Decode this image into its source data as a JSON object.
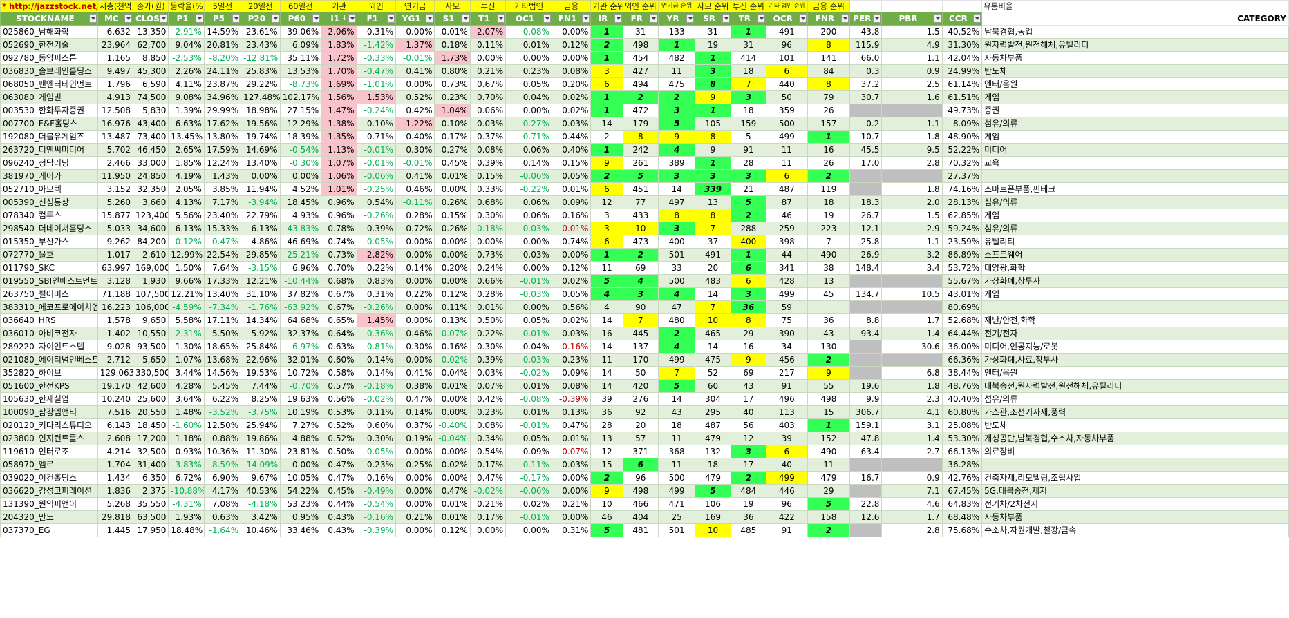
{
  "top_labels": [
    "* http://jazzstock.net/ 활용",
    "시총(천억)",
    "종가(원)",
    "등락율(%)",
    "5일전",
    "20일전",
    "60일전",
    "기관",
    "외인",
    "연기금",
    "사모",
    "투신",
    "기타법인",
    "금융",
    "기관 순위",
    "외인 순위",
    "연기금 순위",
    "사모 순위",
    "투신 순위",
    "기타 법인 순위",
    "금융 순위",
    "",
    "",
    "",
    "유통비율"
  ],
  "headers": [
    "STOCKNAME",
    "MC",
    "CLOSE",
    "P1",
    "P5",
    "P20",
    "P60",
    "I1",
    "F1",
    "YG1",
    "S1",
    "T1",
    "OC1",
    "FN1",
    "IR",
    "FR",
    "YR",
    "SR",
    "TR",
    "OCR",
    "FNR",
    "PER",
    "PBR",
    "CCR",
    "CATEGORY"
  ],
  "sort_indicator": "↓",
  "colors": {
    "header_green": "#70ad47",
    "top_yellow": "#ffff00",
    "stripe": "#e2efda",
    "pink": "#f8c3cb",
    "rank_green": "#33ff55",
    "rank_yellow": "#ffff00",
    "gray": "#bfbfbf",
    "negative": "#00b050",
    "url_red": "#c00000"
  },
  "rows": [
    [
      "025860_남해화학",
      "6.632",
      "13,350",
      "-2.91%",
      "14.59%",
      "23.61%",
      "39.06%",
      "2.06%",
      "0.31%",
      "0.00%",
      "0.01%",
      "2.07%",
      "-0.08%",
      "0.00%",
      "1",
      "31",
      "133",
      "31",
      "1",
      "491",
      "200",
      "43.8",
      "1.5",
      "40.52%",
      "남북경협,농업"
    ],
    [
      "052690_한전기술",
      "23.964",
      "62,700",
      "9.04%",
      "20.81%",
      "23.43%",
      "6.09%",
      "1.83%",
      "-1.42%",
      "1.37%",
      "0.18%",
      "0.11%",
      "0.01%",
      "0.12%",
      "2",
      "498",
      "1",
      "19",
      "31",
      "96",
      "8",
      "115.9",
      "4.9",
      "31.30%",
      "원자력발전,원전해체,유틸리티"
    ],
    [
      "092780_동양피스톤",
      "1.165",
      "8,850",
      "-2.53%",
      "-8.20%",
      "-12.81%",
      "35.11%",
      "1.72%",
      "-0.33%",
      "-0.01%",
      "1.73%",
      "0.00%",
      "0.00%",
      "0.00%",
      "1",
      "454",
      "482",
      "1",
      "414",
      "101",
      "141",
      "66.0",
      "1.1",
      "42.04%",
      "자동차부품"
    ],
    [
      "036830_솔브레인홀딩스",
      "9.497",
      "45,300",
      "2.26%",
      "24.11%",
      "25.83%",
      "13.53%",
      "1.70%",
      "-0.47%",
      "0.41%",
      "0.80%",
      "0.21%",
      "0.23%",
      "0.08%",
      "3",
      "427",
      "11",
      "3",
      "18",
      "6",
      "84",
      "0.3",
      "0.9",
      "24.99%",
      "반도체"
    ],
    [
      "068050_팬엔터테인먼트",
      "1.796",
      "6,590",
      "4.11%",
      "23.87%",
      "29.22%",
      "-8.73%",
      "1.69%",
      "-1.01%",
      "0.00%",
      "0.73%",
      "0.67%",
      "0.05%",
      "0.20%",
      "6",
      "494",
      "475",
      "8",
      "7",
      "440",
      "8",
      "37.2",
      "2.5",
      "61.14%",
      "엔터/음원"
    ],
    [
      "063080_게임빌",
      "4.913",
      "74,500",
      "9.08%",
      "34.96%",
      "127.48%",
      "102.17%",
      "1.56%",
      "1.53%",
      "0.52%",
      "0.23%",
      "0.70%",
      "0.04%",
      "0.02%",
      "1",
      "2",
      "2",
      "9",
      "3",
      "50",
      "79",
      "30.7",
      "1.6",
      "61.51%",
      "게임"
    ],
    [
      "003530_한화투자증권",
      "12.508",
      "5,830",
      "1.39%",
      "29.99%",
      "18.98%",
      "27.15%",
      "1.47%",
      "-0.24%",
      "0.42%",
      "1.04%",
      "0.06%",
      "0.00%",
      "0.02%",
      "1",
      "472",
      "3",
      "1",
      "18",
      "359",
      "26",
      "",
      "",
      "49.73%",
      "증권"
    ],
    [
      "007700_F&F홀딩스",
      "16.976",
      "43,400",
      "6.63%",
      "17.62%",
      "19.56%",
      "12.29%",
      "1.38%",
      "0.10%",
      "1.22%",
      "0.10%",
      "0.03%",
      "-0.27%",
      "0.03%",
      "14",
      "179",
      "5",
      "105",
      "159",
      "500",
      "157",
      "0.2",
      "1.1",
      "8.09%",
      "섬유/의류"
    ],
    [
      "192080_더블유게임즈",
      "13.487",
      "73,400",
      "13.45%",
      "13.80%",
      "19.74%",
      "18.39%",
      "1.35%",
      "0.71%",
      "0.40%",
      "0.17%",
      "0.37%",
      "-0.71%",
      "0.44%",
      "2",
      "8",
      "9",
      "8",
      "5",
      "499",
      "1",
      "10.7",
      "1.8",
      "48.90%",
      "게임"
    ],
    [
      "263720_디앤씨미디어",
      "5.702",
      "46,450",
      "2.65%",
      "17.59%",
      "14.69%",
      "-0.54%",
      "1.13%",
      "-0.01%",
      "0.30%",
      "0.27%",
      "0.08%",
      "0.06%",
      "0.40%",
      "1",
      "242",
      "4",
      "9",
      "91",
      "11",
      "16",
      "45.5",
      "9.5",
      "52.22%",
      "미디어"
    ],
    [
      "096240_청담러닝",
      "2.466",
      "33,000",
      "1.85%",
      "12.24%",
      "13.40%",
      "-0.30%",
      "1.07%",
      "-0.01%",
      "-0.01%",
      "0.45%",
      "0.39%",
      "0.14%",
      "0.15%",
      "9",
      "261",
      "389",
      "1",
      "28",
      "11",
      "26",
      "17.0",
      "2.8",
      "70.32%",
      "교육"
    ],
    [
      "381970_케이카",
      "11.950",
      "24,850",
      "4.19%",
      "1.43%",
      "0.00%",
      "0.00%",
      "1.06%",
      "-0.06%",
      "0.41%",
      "0.01%",
      "0.15%",
      "-0.06%",
      "0.05%",
      "2",
      "5",
      "3",
      "3",
      "3",
      "6",
      "2",
      "",
      "",
      "27.37%",
      ""
    ],
    [
      "052710_아모텍",
      "3.152",
      "32,350",
      "2.05%",
      "3.85%",
      "11.94%",
      "4.52%",
      "1.01%",
      "-0.25%",
      "0.46%",
      "0.00%",
      "0.33%",
      "-0.22%",
      "0.01%",
      "6",
      "451",
      "14",
      "339",
      "21",
      "487",
      "119",
      "",
      "1.8",
      "74.16%",
      "스마트폰부품,핀테크"
    ],
    [
      "005390_신성통상",
      "5.260",
      "3,660",
      "4.13%",
      "7.17%",
      "-3.94%",
      "18.45%",
      "0.96%",
      "0.54%",
      "-0.11%",
      "0.26%",
      "0.68%",
      "0.06%",
      "0.09%",
      "12",
      "77",
      "497",
      "13",
      "5",
      "87",
      "18",
      "18.3",
      "2.0",
      "28.13%",
      "섬유/의류"
    ],
    [
      "078340_컴투스",
      "15.877",
      "123,400",
      "5.56%",
      "23.40%",
      "22.79%",
      "4.93%",
      "0.96%",
      "-0.26%",
      "0.28%",
      "0.15%",
      "0.30%",
      "0.06%",
      "0.16%",
      "3",
      "433",
      "8",
      "8",
      "2",
      "46",
      "19",
      "26.7",
      "1.5",
      "62.85%",
      "게임"
    ],
    [
      "298540_더네이쳐홀딩스",
      "5.033",
      "34,600",
      "6.13%",
      "15.33%",
      "6.13%",
      "-43.83%",
      "0.78%",
      "0.39%",
      "0.72%",
      "0.26%",
      "-0.18%",
      "-0.03%",
      "-0.01%",
      "3",
      "10",
      "3",
      "7",
      "288",
      "259",
      "223",
      "12.1",
      "2.9",
      "59.24%",
      "섬유/의류"
    ],
    [
      "015350_부산가스",
      "9.262",
      "84,200",
      "-0.12%",
      "-0.47%",
      "4.86%",
      "46.69%",
      "0.74%",
      "-0.05%",
      "0.00%",
      "0.00%",
      "0.00%",
      "0.00%",
      "0.74%",
      "6",
      "473",
      "400",
      "37",
      "400",
      "398",
      "7",
      "25.8",
      "1.1",
      "23.59%",
      "유틸리티"
    ],
    [
      "072770_율호",
      "1.017",
      "2,610",
      "12.99%",
      "22.54%",
      "29.85%",
      "-25.21%",
      "0.73%",
      "2.82%",
      "0.00%",
      "0.00%",
      "0.73%",
      "0.03%",
      "0.00%",
      "1",
      "2",
      "501",
      "491",
      "1",
      "44",
      "490",
      "26.9",
      "3.2",
      "86.89%",
      "소프트웨어"
    ],
    [
      "011790_SKC",
      "63.997",
      "169,000",
      "1.50%",
      "7.64%",
      "-3.15%",
      "6.96%",
      "0.70%",
      "0.22%",
      "0.14%",
      "0.20%",
      "0.24%",
      "0.00%",
      "0.12%",
      "11",
      "69",
      "33",
      "20",
      "6",
      "341",
      "38",
      "148.4",
      "3.4",
      "53.72%",
      "태양광,화학"
    ],
    [
      "019550_SBI인베스트먼트",
      "3.128",
      "1,930",
      "9.66%",
      "17.33%",
      "12.21%",
      "-10.44%",
      "0.68%",
      "0.83%",
      "0.00%",
      "0.00%",
      "0.66%",
      "-0.01%",
      "0.02%",
      "5",
      "4",
      "500",
      "483",
      "6",
      "428",
      "13",
      "",
      "",
      "55.67%",
      "가상화폐,창투사"
    ],
    [
      "263750_펄어비스",
      "71.188",
      "107,500",
      "12.21%",
      "13.40%",
      "31.10%",
      "37.82%",
      "0.67%",
      "0.31%",
      "0.22%",
      "0.12%",
      "0.28%",
      "-0.03%",
      "0.05%",
      "4",
      "3",
      "4",
      "14",
      "3",
      "499",
      "45",
      "134.7",
      "10.5",
      "43.01%",
      "게임"
    ],
    [
      "383310_에코프로에이치엔",
      "16.223",
      "106,000",
      "-4.59%",
      "-7.34%",
      "-1.76%",
      "-63.92%",
      "0.67%",
      "-0.26%",
      "0.00%",
      "0.11%",
      "0.01%",
      "0.00%",
      "0.56%",
      "4",
      "90",
      "47",
      "7",
      "36",
      "59",
      "",
      "",
      "",
      "80.69%",
      ""
    ],
    [
      "036640_HRS",
      "1.578",
      "9,650",
      "5.58%",
      "17.11%",
      "14.34%",
      "64.68%",
      "0.65%",
      "1.45%",
      "0.00%",
      "0.13%",
      "0.50%",
      "0.05%",
      "0.02%",
      "14",
      "7",
      "480",
      "10",
      "8",
      "75",
      "36",
      "8.8",
      "1.7",
      "52.68%",
      "재난/안전,화학"
    ],
    [
      "036010_아비코전자",
      "1.402",
      "10,550",
      "-2.31%",
      "5.50%",
      "5.92%",
      "32.37%",
      "0.64%",
      "-0.36%",
      "0.46%",
      "-0.07%",
      "0.22%",
      "-0.01%",
      "0.03%",
      "16",
      "445",
      "2",
      "465",
      "29",
      "390",
      "43",
      "93.4",
      "1.4",
      "64.44%",
      "전기/전자"
    ],
    [
      "289220_자이언트스텝",
      "9.028",
      "93,500",
      "1.30%",
      "18.65%",
      "25.84%",
      "-6.97%",
      "0.63%",
      "-0.81%",
      "0.30%",
      "0.16%",
      "0.30%",
      "0.04%",
      "-0.16%",
      "14",
      "137",
      "4",
      "14",
      "16",
      "34",
      "130",
      "",
      "30.6",
      "36.00%",
      "미디어,인공지능/로봇"
    ],
    [
      "021080_에이티넘인베스트",
      "2.712",
      "5,650",
      "1.07%",
      "13.68%",
      "22.96%",
      "32.01%",
      "0.60%",
      "0.14%",
      "0.00%",
      "-0.02%",
      "0.39%",
      "-0.03%",
      "0.23%",
      "11",
      "170",
      "499",
      "475",
      "9",
      "456",
      "2",
      "",
      "",
      "66.36%",
      "가상화폐,사료,창투사"
    ],
    [
      "352820_하이브",
      "129.063",
      "330,500",
      "3.44%",
      "14.56%",
      "19.53%",
      "10.72%",
      "0.58%",
      "0.14%",
      "0.41%",
      "0.04%",
      "0.03%",
      "-0.02%",
      "0.09%",
      "14",
      "50",
      "7",
      "52",
      "69",
      "217",
      "9",
      "",
      "6.8",
      "38.44%",
      "엔터/음원"
    ],
    [
      "051600_한전KPS",
      "19.170",
      "42,600",
      "4.28%",
      "5.45%",
      "7.44%",
      "-0.70%",
      "0.57%",
      "-0.18%",
      "0.38%",
      "0.01%",
      "0.07%",
      "0.01%",
      "0.08%",
      "14",
      "420",
      "5",
      "60",
      "43",
      "91",
      "55",
      "19.6",
      "1.8",
      "48.76%",
      "대북송전,원자력발전,원전해체,유틸리티"
    ],
    [
      "105630_한세실업",
      "10.240",
      "25,600",
      "3.64%",
      "6.22%",
      "8.25%",
      "19.63%",
      "0.56%",
      "-0.02%",
      "0.47%",
      "0.00%",
      "0.42%",
      "-0.08%",
      "-0.39%",
      "39",
      "276",
      "14",
      "304",
      "17",
      "496",
      "498",
      "9.9",
      "2.3",
      "40.40%",
      "섬유/의류"
    ],
    [
      "100090_삼강엠앤티",
      "7.516",
      "20,550",
      "1.48%",
      "-3.52%",
      "-3.75%",
      "10.19%",
      "0.53%",
      "0.11%",
      "0.14%",
      "0.00%",
      "0.23%",
      "0.01%",
      "0.13%",
      "36",
      "92",
      "43",
      "295",
      "40",
      "113",
      "15",
      "306.7",
      "4.1",
      "60.80%",
      "가스관,조선기자재,풍력"
    ],
    [
      "020120_키다리스튜디오",
      "6.143",
      "18,450",
      "-1.60%",
      "12.50%",
      "25.94%",
      "7.27%",
      "0.52%",
      "0.60%",
      "0.37%",
      "-0.40%",
      "0.08%",
      "-0.01%",
      "0.47%",
      "28",
      "20",
      "18",
      "487",
      "56",
      "403",
      "1",
      "159.1",
      "3.1",
      "25.08%",
      "반도체"
    ],
    [
      "023800_인지컨트롤스",
      "2.608",
      "17,200",
      "1.18%",
      "0.88%",
      "19.86%",
      "4.88%",
      "0.52%",
      "0.30%",
      "0.19%",
      "-0.04%",
      "0.34%",
      "0.05%",
      "0.01%",
      "13",
      "57",
      "11",
      "479",
      "12",
      "39",
      "152",
      "47.8",
      "1.4",
      "53.30%",
      "개성공단,남북경협,수소차,자동차부품"
    ],
    [
      "119610_인터로조",
      "4.214",
      "32,500",
      "0.93%",
      "10.36%",
      "11.30%",
      "23.81%",
      "0.50%",
      "-0.05%",
      "0.00%",
      "0.00%",
      "0.54%",
      "0.09%",
      "-0.07%",
      "12",
      "371",
      "368",
      "132",
      "3",
      "6",
      "490",
      "63.4",
      "2.7",
      "66.13%",
      "의료장비"
    ],
    [
      "058970_엠로",
      "1.704",
      "31,400",
      "-3.83%",
      "-8.59%",
      "-14.09%",
      "0.00%",
      "0.47%",
      "0.23%",
      "0.25%",
      "0.02%",
      "0.17%",
      "-0.11%",
      "0.03%",
      "15",
      "6",
      "11",
      "18",
      "17",
      "40",
      "11",
      "",
      "",
      "36.28%",
      ""
    ],
    [
      "039020_이건홀딩스",
      "1.434",
      "6,350",
      "6.72%",
      "6.90%",
      "9.67%",
      "10.05%",
      "0.47%",
      "0.16%",
      "0.00%",
      "0.00%",
      "0.47%",
      "-0.17%",
      "0.00%",
      "2",
      "96",
      "500",
      "479",
      "2",
      "499",
      "479",
      "16.7",
      "0.9",
      "42.76%",
      "건축자재,리모델링,조립사업"
    ],
    [
      "036620_감성코퍼레이션",
      "1.836",
      "2,375",
      "-10.88%",
      "4.17%",
      "40.53%",
      "54.22%",
      "0.45%",
      "-0.49%",
      "0.00%",
      "0.47%",
      "-0.02%",
      "-0.06%",
      "0.00%",
      "9",
      "498",
      "499",
      "5",
      "484",
      "446",
      "29",
      "",
      "7.1",
      "67.45%",
      "5G,대북송전,제지"
    ],
    [
      "131390_원익피앤이",
      "5.268",
      "35,550",
      "-4.31%",
      "7.08%",
      "-4.18%",
      "53.23%",
      "0.44%",
      "-0.54%",
      "0.00%",
      "0.01%",
      "0.21%",
      "0.02%",
      "0.21%",
      "10",
      "466",
      "471",
      "106",
      "19",
      "96",
      "5",
      "22.8",
      "4.6",
      "64.83%",
      "전기차/2차전지"
    ],
    [
      "204320_만도",
      "29.818",
      "63,500",
      "1.93%",
      "0.63%",
      "3.42%",
      "0.95%",
      "0.43%",
      "-0.16%",
      "0.21%",
      "0.01%",
      "0.17%",
      "-0.01%",
      "0.00%",
      "46",
      "404",
      "25",
      "169",
      "36",
      "422",
      "158",
      "12.6",
      "1.7",
      "68.48%",
      "자동차부품"
    ],
    [
      "037370_EG",
      "1.445",
      "17,950",
      "18.48%",
      "-1.64%",
      "10.46%",
      "33.46%",
      "0.43%",
      "-0.39%",
      "0.00%",
      "0.12%",
      "0.00%",
      "0.00%",
      "0.31%",
      "5",
      "481",
      "501",
      "10",
      "485",
      "91",
      "2",
      "",
      "2.8",
      "75.68%",
      "수소차,자원개발,철강/금속"
    ]
  ],
  "pink_cells": [
    [
      0,
      7
    ],
    [
      0,
      11
    ],
    [
      1,
      7
    ],
    [
      1,
      9
    ],
    [
      2,
      7
    ],
    [
      2,
      10
    ],
    [
      3,
      7
    ],
    [
      4,
      7
    ],
    [
      5,
      7
    ],
    [
      5,
      8
    ],
    [
      6,
      7
    ],
    [
      6,
      10
    ],
    [
      7,
      7
    ],
    [
      7,
      9
    ],
    [
      8,
      7
    ],
    [
      9,
      7
    ],
    [
      10,
      7
    ],
    [
      11,
      7
    ],
    [
      12,
      7
    ],
    [
      17,
      8
    ],
    [
      22,
      8
    ]
  ],
  "green_cells": [
    [
      0,
      14
    ],
    [
      0,
      18
    ],
    [
      1,
      14
    ],
    [
      1,
      16
    ],
    [
      2,
      14
    ],
    [
      2,
      17
    ],
    [
      3,
      17
    ],
    [
      4,
      17
    ],
    [
      5,
      14
    ],
    [
      5,
      15
    ],
    [
      5,
      16
    ],
    [
      5,
      18
    ],
    [
      6,
      14
    ],
    [
      6,
      16
    ],
    [
      6,
      17
    ],
    [
      7,
      16
    ],
    [
      8,
      20
    ],
    [
      9,
      14
    ],
    [
      9,
      16
    ],
    [
      10,
      17
    ],
    [
      11,
      14
    ],
    [
      11,
      15
    ],
    [
      11,
      16
    ],
    [
      11,
      17
    ],
    [
      11,
      18
    ],
    [
      11,
      20
    ],
    [
      12,
      17
    ],
    [
      13,
      18
    ],
    [
      14,
      18
    ],
    [
      15,
      16
    ],
    [
      17,
      14
    ],
    [
      17,
      15
    ],
    [
      17,
      18
    ],
    [
      18,
      18
    ],
    [
      19,
      14
    ],
    [
      19,
      15
    ],
    [
      20,
      14
    ],
    [
      20,
      15
    ],
    [
      20,
      16
    ],
    [
      20,
      18
    ],
    [
      21,
      18
    ],
    [
      23,
      16
    ],
    [
      24,
      16
    ],
    [
      25,
      20
    ],
    [
      27,
      16
    ],
    [
      30,
      20
    ],
    [
      32,
      18
    ],
    [
      33,
      15
    ],
    [
      34,
      14
    ],
    [
      34,
      18
    ],
    [
      35,
      17
    ],
    [
      36,
      20
    ],
    [
      38,
      14
    ],
    [
      38,
      20
    ]
  ],
  "yellow_cells": [
    [
      1,
      20
    ],
    [
      3,
      14
    ],
    [
      3,
      19
    ],
    [
      4,
      14
    ],
    [
      4,
      17
    ],
    [
      4,
      18
    ],
    [
      4,
      20
    ],
    [
      5,
      17
    ],
    [
      8,
      15
    ],
    [
      8,
      16
    ],
    [
      8,
      17
    ],
    [
      10,
      14
    ],
    [
      11,
      19
    ],
    [
      12,
      14
    ],
    [
      14,
      16
    ],
    [
      14,
      17
    ],
    [
      15,
      14
    ],
    [
      15,
      15
    ],
    [
      15,
      17
    ],
    [
      16,
      14
    ],
    [
      16,
      18
    ],
    [
      18,
      18
    ],
    [
      19,
      18
    ],
    [
      21,
      17
    ],
    [
      22,
      15
    ],
    [
      22,
      17
    ],
    [
      22,
      18
    ],
    [
      25,
      18
    ],
    [
      26,
      16
    ],
    [
      26,
      20
    ],
    [
      32,
      19
    ],
    [
      33,
      15
    ],
    [
      34,
      19
    ],
    [
      35,
      14
    ],
    [
      38,
      17
    ]
  ],
  "gray_cells": [
    [
      6,
      21
    ],
    [
      6,
      22
    ],
    [
      11,
      21
    ],
    [
      11,
      22
    ],
    [
      12,
      21
    ],
    [
      19,
      21
    ],
    [
      19,
      22
    ],
    [
      21,
      21
    ],
    [
      21,
      22
    ],
    [
      24,
      21
    ],
    [
      25,
      21
    ],
    [
      25,
      22
    ],
    [
      26,
      21
    ],
    [
      33,
      21
    ],
    [
      33,
      22
    ],
    [
      35,
      21
    ],
    [
      38,
      21
    ]
  ]
}
